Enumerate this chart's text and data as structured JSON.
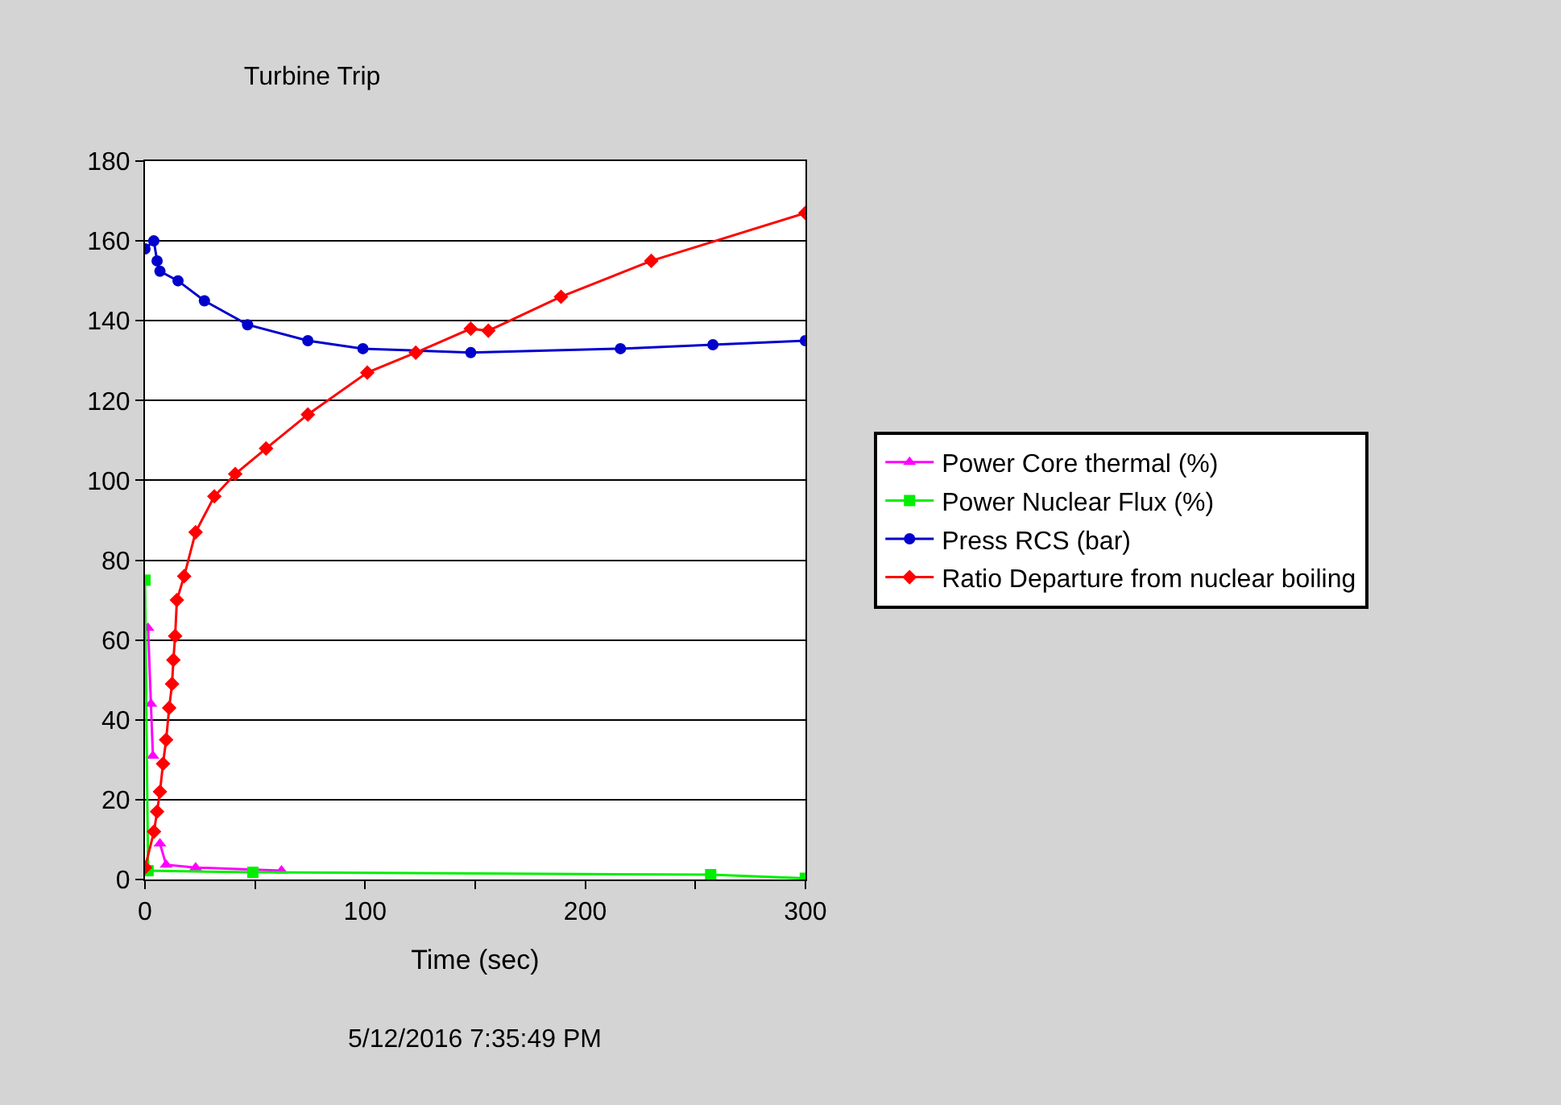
{
  "chart_data": {
    "type": "line",
    "title": "Turbine Trip",
    "xlabel": "Time (sec)",
    "xlim": [
      0,
      300
    ],
    "xticks": [
      0,
      {
        "value": 50,
        "label": null
      },
      100,
      {
        "value": 150,
        "label": null
      },
      200,
      {
        "value": 250,
        "label": null
      },
      300
    ],
    "ylim": [
      0,
      180
    ],
    "yticks": [
      0,
      20,
      40,
      60,
      80,
      100,
      120,
      140,
      160,
      180
    ],
    "grid": "y",
    "legend": "right",
    "annotations": [
      "5/12/2016 7:35:49 PM"
    ],
    "series": [
      {
        "name": "Power Core thermal (%)",
        "color": "#ff00ff",
        "marker": "triangle",
        "x": [
          1.4,
          2.7,
          3.6,
          4.7,
          5.5,
          6.8,
          9.6,
          23,
          62
        ],
        "values": [
          63,
          44,
          31,
          null,
          null,
          9,
          3.7,
          3,
          2.2
        ]
      },
      {
        "name": "Power Nuclear Flux (%)",
        "color": "#00ee00",
        "marker": "square",
        "x": [
          0,
          1.4,
          49,
          257,
          300
        ],
        "values": [
          75,
          2.2,
          1.8,
          1.2,
          0.3
        ]
      },
      {
        "name": "Press RCS (bar)",
        "color": "#0000cc",
        "marker": "circle",
        "x": [
          0,
          4,
          5.5,
          6.8,
          15,
          27,
          46.6,
          74,
          99,
          148,
          216,
          258,
          300
        ],
        "values": [
          158,
          160,
          155,
          152.4,
          150,
          145,
          139,
          135,
          133,
          132,
          133,
          134,
          135
        ]
      },
      {
        "name": "Ratio Departure from nuclear boiling",
        "color": "#ff0000",
        "marker": "diamond",
        "x": [
          0,
          4.1,
          5.5,
          6.8,
          8.2,
          9.6,
          11,
          12.3,
          12.9,
          13.7,
          14.5,
          17.8,
          23,
          31.5,
          41,
          55,
          74,
          101,
          123,
          148,
          156,
          189,
          230,
          300
        ],
        "values": [
          3,
          12,
          17,
          22,
          29,
          35,
          43,
          49,
          55,
          61,
          70,
          76,
          87,
          96,
          101.6,
          108,
          116.5,
          127,
          132,
          138,
          137.5,
          146,
          155,
          167
        ]
      }
    ]
  }
}
